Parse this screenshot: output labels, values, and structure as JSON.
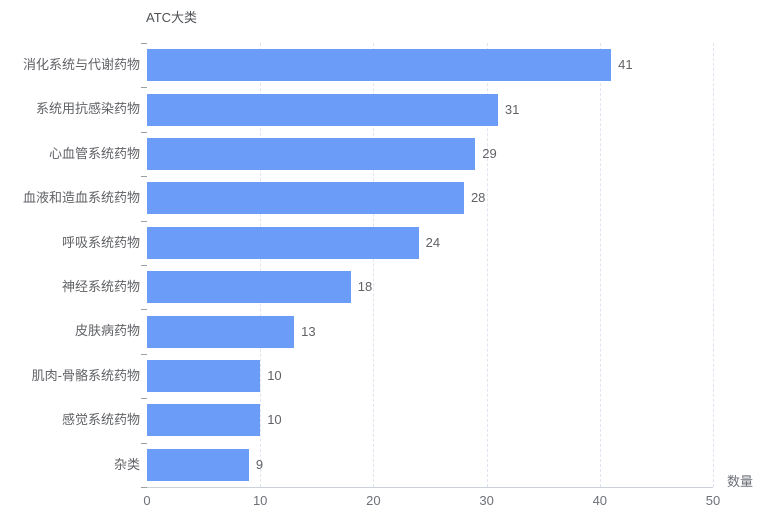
{
  "chart_data": {
    "type": "bar",
    "orientation": "horizontal",
    "title": "ATC大类",
    "categories": [
      "消化系统与代谢药物",
      "系统用抗感染药物",
      "心血管系统药物",
      "血液和造血系统药物",
      "呼吸系统药物",
      "神经系统药物",
      "皮肤病药物",
      "肌肉-骨骼系统药物",
      "感觉系统药物",
      "杂类"
    ],
    "values": [
      41,
      31,
      29,
      28,
      24,
      18,
      13,
      10,
      10,
      9
    ],
    "value_labels": [
      "41",
      "31",
      "29",
      "28",
      "24",
      "18",
      "13",
      "10",
      "10",
      "9"
    ],
    "xlabel": "数量",
    "ylabel": "",
    "xlim": [
      0,
      50
    ],
    "x_ticks": [
      0,
      10,
      20,
      30,
      40,
      50
    ],
    "x_tick_labels": [
      "0",
      "10",
      "20",
      "30",
      "40",
      "50"
    ],
    "grid": "vertical-dashed",
    "legend": "none",
    "value_labels_shown": true
  },
  "colors": {
    "bar": "#6b9df8",
    "gridline": "#e0e4ee",
    "axis_line": "#ccd0d7",
    "axis_tick": "#9aa0a8",
    "label_text": "#606266",
    "tick_text": "#6e7079",
    "title_text": "#4e5256",
    "background": "#ffffff"
  }
}
